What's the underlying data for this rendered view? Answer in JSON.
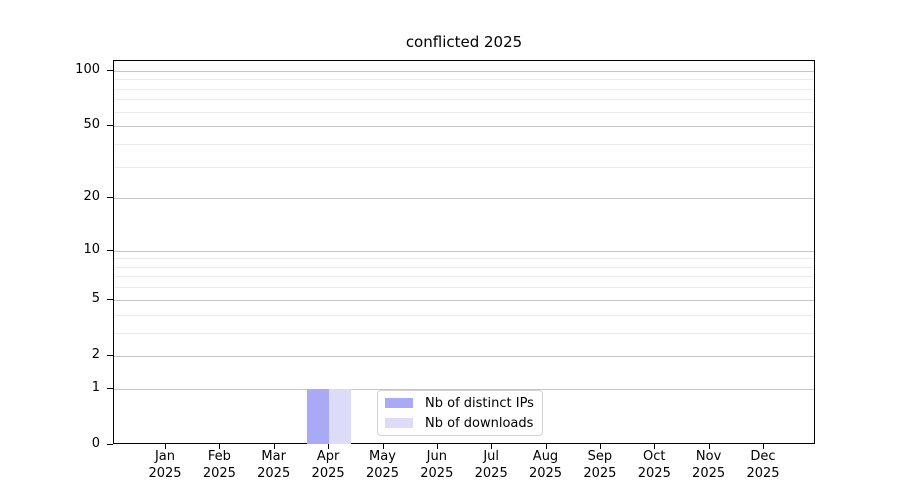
{
  "chart_data": {
    "type": "bar",
    "title": "conflicted 2025",
    "categories": [
      "Jan",
      "Feb",
      "Mar",
      "Apr",
      "May",
      "Jun",
      "Jul",
      "Aug",
      "Sep",
      "Oct",
      "Nov",
      "Dec"
    ],
    "category_year": "2025",
    "series": [
      {
        "name": "Nb of distinct IPs",
        "color": "#a9a9f5",
        "values": [
          0,
          0,
          0,
          1,
          0,
          0,
          0,
          0,
          0,
          0,
          0,
          0
        ]
      },
      {
        "name": "Nb of downloads",
        "color": "#dcdcf8",
        "values": [
          0,
          0,
          0,
          1,
          0,
          0,
          0,
          0,
          0,
          0,
          0,
          0
        ]
      }
    ],
    "xlabel": "",
    "ylabel": "",
    "yscale": "log1p",
    "ylim": [
      0,
      113
    ],
    "yticks": [
      0,
      1,
      2,
      5,
      10,
      20,
      50,
      100
    ],
    "yticks_minor": [
      3,
      4,
      6,
      7,
      8,
      9,
      30,
      40,
      60,
      70,
      80,
      90
    ],
    "grid": "both",
    "legend_position": "lower center inside"
  },
  "colors": {
    "grid_major": "#c6c6c6",
    "grid_minor": "#ececec",
    "spine": "#000000",
    "text": "#000000",
    "legend_border": "#d2d2d2",
    "legend_bg": "#ffffff"
  }
}
